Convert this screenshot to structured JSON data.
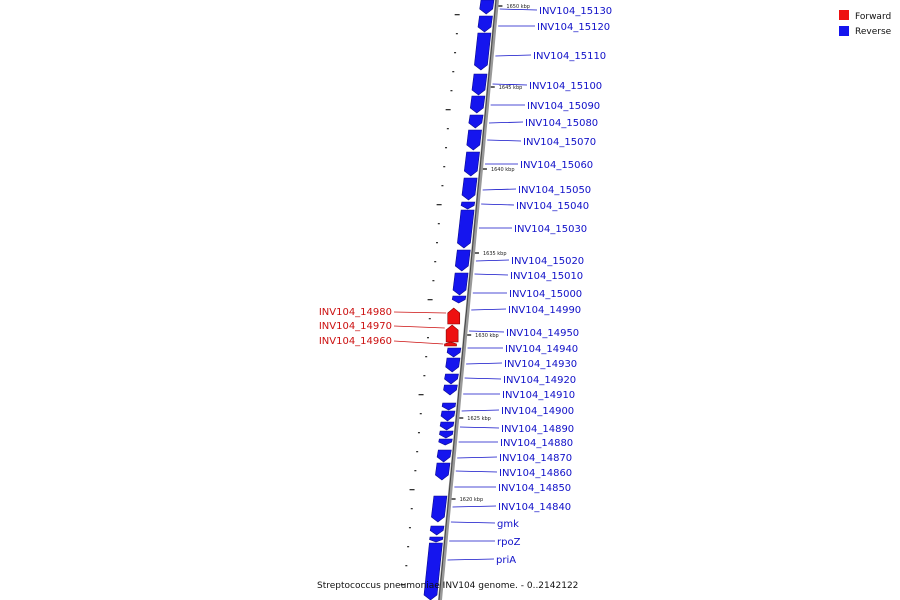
{
  "caption": "Streptococcus pneumoniae INV104 genome. - 0..2142122",
  "legend": [
    {
      "label": "Forward",
      "color": "#ee1111"
    },
    {
      "label": "Reverse",
      "color": "#1515ee"
    }
  ],
  "colors": {
    "forward": "#ee1111",
    "reverse": "#1515ee",
    "backbone": "#888888",
    "forward_label": "#cc1010",
    "reverse_label": "#1010c8"
  },
  "scale_ticks": [
    "1650 kbp",
    "1645 kbp",
    "1640 kbp",
    "1635 kbp",
    "1630 kbp",
    "1625 kbp",
    "1620 kbp"
  ],
  "forward_genes": [
    "INV104_14980",
    "INV104_14970",
    "INV104_14960"
  ],
  "reverse_genes": [
    "INV104_15130",
    "INV104_15120",
    "INV104_15110",
    "INV104_15100",
    "INV104_15090",
    "INV104_15080",
    "INV104_15070",
    "INV104_15060",
    "INV104_15050",
    "INV104_15040",
    "INV104_15030",
    "INV104_15020",
    "INV104_15010",
    "INV104_15000",
    "INV104_14990",
    "INV104_14950",
    "INV104_14940",
    "INV104_14930",
    "INV104_14920",
    "INV104_14910",
    "INV104_14900",
    "INV104_14890",
    "INV104_14880",
    "INV104_14870",
    "INV104_14860",
    "INV104_14850",
    "INV104_14840",
    "gmk",
    "rpoZ",
    "priA"
  ]
}
